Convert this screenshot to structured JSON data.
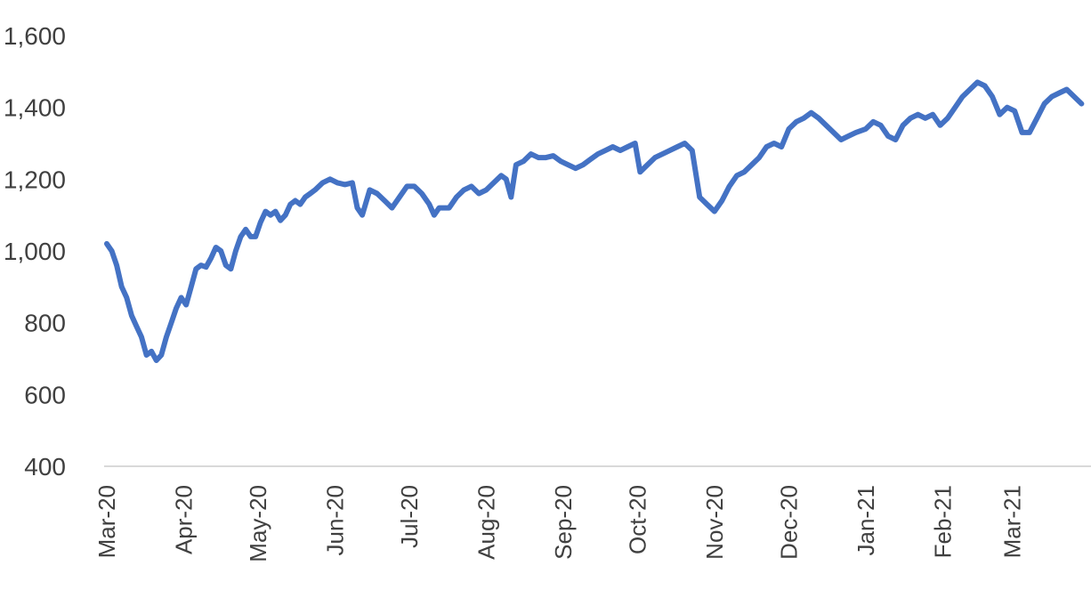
{
  "chart_data": {
    "type": "line",
    "title": "",
    "xlabel": "",
    "ylabel": "",
    "ylim": [
      400,
      1600
    ],
    "y_ticks": [
      400,
      600,
      800,
      1000,
      1200,
      1400,
      1600
    ],
    "y_tick_labels": [
      "400",
      "600",
      "800",
      "1,000",
      "1,200",
      "1,400",
      "1,600"
    ],
    "x_ticks": [
      "2020-03-01",
      "2020-04-01",
      "2020-05-01",
      "2020-06-01",
      "2020-07-01",
      "2020-08-01",
      "2020-09-01",
      "2020-10-01",
      "2020-11-01",
      "2020-12-01",
      "2021-01-01",
      "2021-02-01",
      "2021-03-01"
    ],
    "x_tick_labels": [
      "Mar-20",
      "Apr-20",
      "May-20",
      "Jun-20",
      "Jul-20",
      "Aug-20",
      "Sep-20",
      "Oct-20",
      "Nov-20",
      "Dec-20",
      "Jan-21",
      "Feb-21",
      "Mar-21"
    ],
    "grid": false,
    "legend": "none",
    "series": [
      {
        "color": "#4472C4",
        "points": [
          [
            "2020-03-01",
            1020
          ],
          [
            "2020-03-03",
            1000
          ],
          [
            "2020-03-05",
            960
          ],
          [
            "2020-03-07",
            900
          ],
          [
            "2020-03-09",
            870
          ],
          [
            "2020-03-11",
            820
          ],
          [
            "2020-03-13",
            790
          ],
          [
            "2020-03-15",
            760
          ],
          [
            "2020-03-17",
            710
          ],
          [
            "2020-03-19",
            720
          ],
          [
            "2020-03-21",
            695
          ],
          [
            "2020-03-23",
            710
          ],
          [
            "2020-03-25",
            760
          ],
          [
            "2020-03-27",
            800
          ],
          [
            "2020-03-29",
            840
          ],
          [
            "2020-03-31",
            870
          ],
          [
            "2020-04-02",
            850
          ],
          [
            "2020-04-04",
            900
          ],
          [
            "2020-04-06",
            950
          ],
          [
            "2020-04-08",
            960
          ],
          [
            "2020-04-10",
            955
          ],
          [
            "2020-04-12",
            980
          ],
          [
            "2020-04-14",
            1010
          ],
          [
            "2020-04-16",
            1000
          ],
          [
            "2020-04-18",
            960
          ],
          [
            "2020-04-20",
            950
          ],
          [
            "2020-04-22",
            1000
          ],
          [
            "2020-04-24",
            1040
          ],
          [
            "2020-04-26",
            1060
          ],
          [
            "2020-04-28",
            1040
          ],
          [
            "2020-04-30",
            1040
          ],
          [
            "2020-05-02",
            1080
          ],
          [
            "2020-05-04",
            1110
          ],
          [
            "2020-05-06",
            1100
          ],
          [
            "2020-05-08",
            1110
          ],
          [
            "2020-05-10",
            1085
          ],
          [
            "2020-05-12",
            1100
          ],
          [
            "2020-05-14",
            1130
          ],
          [
            "2020-05-16",
            1140
          ],
          [
            "2020-05-18",
            1130
          ],
          [
            "2020-05-20",
            1150
          ],
          [
            "2020-05-22",
            1160
          ],
          [
            "2020-05-24",
            1170
          ],
          [
            "2020-05-27",
            1190
          ],
          [
            "2020-05-30",
            1200
          ],
          [
            "2020-06-02",
            1190
          ],
          [
            "2020-06-05",
            1185
          ],
          [
            "2020-06-08",
            1190
          ],
          [
            "2020-06-10",
            1120
          ],
          [
            "2020-06-12",
            1100
          ],
          [
            "2020-06-15",
            1170
          ],
          [
            "2020-06-18",
            1160
          ],
          [
            "2020-06-21",
            1140
          ],
          [
            "2020-06-24",
            1120
          ],
          [
            "2020-06-27",
            1150
          ],
          [
            "2020-06-30",
            1180
          ],
          [
            "2020-07-03",
            1180
          ],
          [
            "2020-07-06",
            1160
          ],
          [
            "2020-07-09",
            1130
          ],
          [
            "2020-07-11",
            1100
          ],
          [
            "2020-07-13",
            1120
          ],
          [
            "2020-07-17",
            1120
          ],
          [
            "2020-07-20",
            1150
          ],
          [
            "2020-07-23",
            1170
          ],
          [
            "2020-07-26",
            1180
          ],
          [
            "2020-07-29",
            1160
          ],
          [
            "2020-08-01",
            1170
          ],
          [
            "2020-08-04",
            1190
          ],
          [
            "2020-08-07",
            1210
          ],
          [
            "2020-08-09",
            1200
          ],
          [
            "2020-08-11",
            1150
          ],
          [
            "2020-08-13",
            1240
          ],
          [
            "2020-08-16",
            1250
          ],
          [
            "2020-08-19",
            1270
          ],
          [
            "2020-08-22",
            1260
          ],
          [
            "2020-08-25",
            1260
          ],
          [
            "2020-08-28",
            1265
          ],
          [
            "2020-08-31",
            1250
          ],
          [
            "2020-09-03",
            1240
          ],
          [
            "2020-09-06",
            1230
          ],
          [
            "2020-09-09",
            1240
          ],
          [
            "2020-09-12",
            1255
          ],
          [
            "2020-09-15",
            1270
          ],
          [
            "2020-09-18",
            1280
          ],
          [
            "2020-09-21",
            1290
          ],
          [
            "2020-09-24",
            1280
          ],
          [
            "2020-09-27",
            1290
          ],
          [
            "2020-09-30",
            1300
          ],
          [
            "2020-10-02",
            1220
          ],
          [
            "2020-10-05",
            1240
          ],
          [
            "2020-10-08",
            1260
          ],
          [
            "2020-10-11",
            1270
          ],
          [
            "2020-10-14",
            1280
          ],
          [
            "2020-10-17",
            1290
          ],
          [
            "2020-10-20",
            1300
          ],
          [
            "2020-10-23",
            1280
          ],
          [
            "2020-10-26",
            1150
          ],
          [
            "2020-10-29",
            1130
          ],
          [
            "2020-11-01",
            1110
          ],
          [
            "2020-11-04",
            1140
          ],
          [
            "2020-11-07",
            1180
          ],
          [
            "2020-11-10",
            1210
          ],
          [
            "2020-11-13",
            1220
          ],
          [
            "2020-11-16",
            1240
          ],
          [
            "2020-11-19",
            1260
          ],
          [
            "2020-11-22",
            1290
          ],
          [
            "2020-11-25",
            1300
          ],
          [
            "2020-11-28",
            1290
          ],
          [
            "2020-12-01",
            1340
          ],
          [
            "2020-12-04",
            1360
          ],
          [
            "2020-12-07",
            1370
          ],
          [
            "2020-12-10",
            1385
          ],
          [
            "2020-12-13",
            1370
          ],
          [
            "2020-12-16",
            1350
          ],
          [
            "2020-12-19",
            1330
          ],
          [
            "2020-12-22",
            1310
          ],
          [
            "2020-12-25",
            1320
          ],
          [
            "2020-12-28",
            1330
          ],
          [
            "2021-01-01",
            1340
          ],
          [
            "2021-01-04",
            1360
          ],
          [
            "2021-01-07",
            1350
          ],
          [
            "2021-01-10",
            1320
          ],
          [
            "2021-01-13",
            1310
          ],
          [
            "2021-01-16",
            1350
          ],
          [
            "2021-01-19",
            1370
          ],
          [
            "2021-01-22",
            1380
          ],
          [
            "2021-01-25",
            1370
          ],
          [
            "2021-01-28",
            1380
          ],
          [
            "2021-01-31",
            1350
          ],
          [
            "2021-02-03",
            1370
          ],
          [
            "2021-02-06",
            1400
          ],
          [
            "2021-02-09",
            1430
          ],
          [
            "2021-02-12",
            1450
          ],
          [
            "2021-02-15",
            1470
          ],
          [
            "2021-02-18",
            1460
          ],
          [
            "2021-02-21",
            1430
          ],
          [
            "2021-02-24",
            1380
          ],
          [
            "2021-02-27",
            1400
          ],
          [
            "2021-03-02",
            1390
          ],
          [
            "2021-03-05",
            1330
          ],
          [
            "2021-03-08",
            1330
          ],
          [
            "2021-03-11",
            1370
          ],
          [
            "2021-03-14",
            1410
          ],
          [
            "2021-03-17",
            1430
          ],
          [
            "2021-03-20",
            1440
          ],
          [
            "2021-03-23",
            1450
          ],
          [
            "2021-03-26",
            1430
          ],
          [
            "2021-03-29",
            1410
          ]
        ]
      }
    ]
  }
}
